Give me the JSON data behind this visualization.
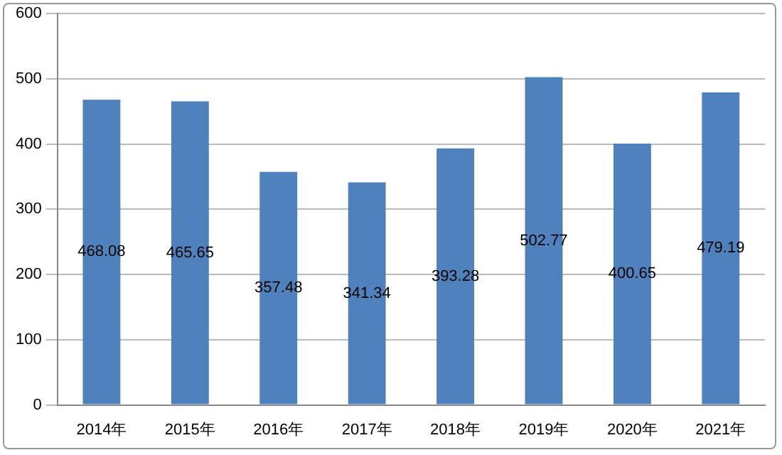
{
  "chart_data": {
    "type": "bar",
    "categories": [
      "2014年",
      "2015年",
      "2016年",
      "2017年",
      "2018年",
      "2019年",
      "2020年",
      "2021年"
    ],
    "values": [
      468.08,
      465.65,
      357.48,
      341.34,
      393.28,
      502.77,
      400.65,
      479.19
    ],
    "color": "#4f81bd",
    "ylim": [
      0,
      600
    ],
    "yticks": [
      0,
      100,
      200,
      300,
      400,
      500,
      600
    ],
    "grid": "y",
    "data_labels": true
  }
}
